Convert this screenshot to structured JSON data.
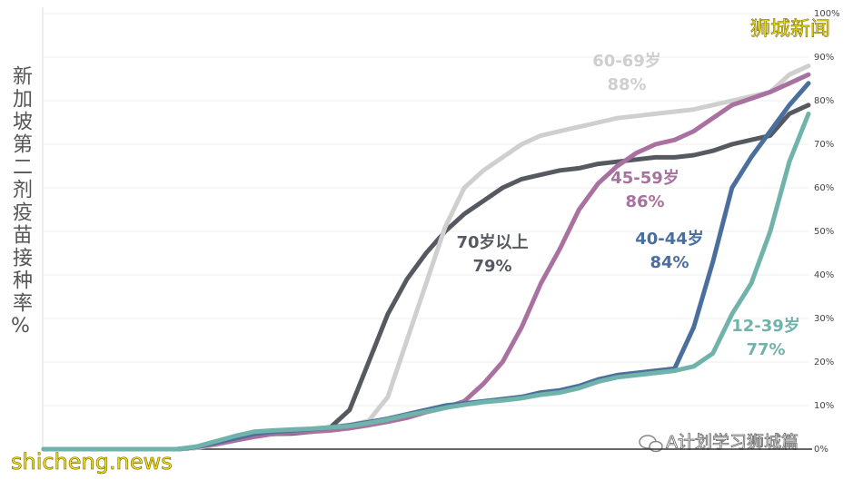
{
  "chart_data": {
    "type": "line",
    "y_title": "新加坡第二剂疫苗接种率%",
    "categories": [
      null,
      null,
      null,
      null,
      null,
      null,
      null,
      null,
      null,
      null,
      null,
      null,
      null,
      null,
      null,
      null,
      null,
      null,
      null,
      null,
      null,
      null,
      null,
      null,
      null,
      null,
      null,
      null,
      null,
      null,
      null,
      null,
      null,
      null,
      null,
      null,
      null,
      null,
      null,
      null,
      null
    ],
    "ylim": [
      0,
      100
    ],
    "yticks": [
      {
        "value": 0,
        "label": "0%"
      },
      {
        "value": 10,
        "label": "10%"
      },
      {
        "value": 20,
        "label": "20%"
      },
      {
        "value": 30,
        "label": "30%"
      },
      {
        "value": 40,
        "label": "40%"
      },
      {
        "value": 50,
        "label": "50%"
      },
      {
        "value": 60,
        "label": "60%"
      },
      {
        "value": 70,
        "label": "70%"
      },
      {
        "value": 80,
        "label": "80%"
      },
      {
        "value": 90,
        "label": "90%"
      },
      {
        "value": 100,
        "label": "100%"
      }
    ],
    "grid": true,
    "series": [
      {
        "name": "70岁以上",
        "color": "#565a60",
        "value_label": "79%",
        "values": [
          0,
          0,
          0,
          0,
          0,
          0,
          0,
          0,
          0.3,
          1,
          2,
          3,
          3.5,
          3.6,
          4,
          5,
          9,
          20,
          31,
          39,
          45,
          50,
          54,
          57,
          60,
          62,
          63,
          64,
          64.5,
          65.5,
          66,
          66.5,
          67,
          67,
          67.5,
          68.5,
          70,
          71,
          72,
          77,
          79
        ]
      },
      {
        "name": "60-69岁",
        "color": "#cfcfcf",
        "value_label": "88%",
        "values": [
          0,
          0,
          0,
          0,
          0,
          0,
          0,
          0,
          0.3,
          1,
          2,
          3,
          3.8,
          4.2,
          4.5,
          4.8,
          5.5,
          6.5,
          12,
          25,
          38,
          51,
          60,
          64,
          67,
          70,
          72,
          73,
          74,
          75,
          76,
          76.5,
          77,
          77.5,
          78,
          79,
          80,
          81,
          82,
          86,
          88
        ]
      },
      {
        "name": "45-59岁",
        "color": "#a9719f",
        "value_label": "86%",
        "values": [
          0,
          0,
          0,
          0,
          0,
          0,
          0,
          0,
          0.5,
          1.2,
          2,
          2.8,
          3.5,
          3.8,
          4,
          4.3,
          4.8,
          5.5,
          6.3,
          7.2,
          8.5,
          9.5,
          11,
          15,
          20,
          28,
          38,
          46,
          55,
          61,
          65,
          68,
          70,
          71,
          73,
          76,
          79,
          80.5,
          82,
          84,
          86
        ]
      },
      {
        "name": "40-44岁",
        "color": "#4a6f9c",
        "value_label": "84%",
        "values": [
          0,
          0,
          0,
          0,
          0,
          0,
          0,
          0,
          0.5,
          1.5,
          2.5,
          3.5,
          4,
          4.3,
          4.6,
          5,
          5.5,
          6.2,
          7,
          8,
          9,
          10,
          10.5,
          11,
          11.5,
          12,
          13,
          13.5,
          14.5,
          16,
          17,
          17.5,
          18,
          18.5,
          28,
          43,
          60,
          67,
          73,
          79,
          84
        ]
      },
      {
        "name": "12-39岁",
        "color": "#6fb3aa",
        "value_label": "77%",
        "values": [
          0,
          0,
          0,
          0,
          0,
          0,
          0,
          0,
          0.6,
          1.8,
          3,
          4,
          4.3,
          4.5,
          4.7,
          5,
          5.3,
          6,
          6.8,
          7.8,
          8.6,
          9.5,
          10.2,
          10.8,
          11.2,
          11.7,
          12.5,
          13,
          14,
          15.5,
          16.5,
          17,
          17.5,
          18,
          19,
          22,
          31,
          38,
          50,
          66,
          77
        ]
      }
    ]
  },
  "watermarks": {
    "top": "狮城新闻",
    "bottom_left": "shicheng.news",
    "bottom_right": "A计划学习狮城篇"
  }
}
